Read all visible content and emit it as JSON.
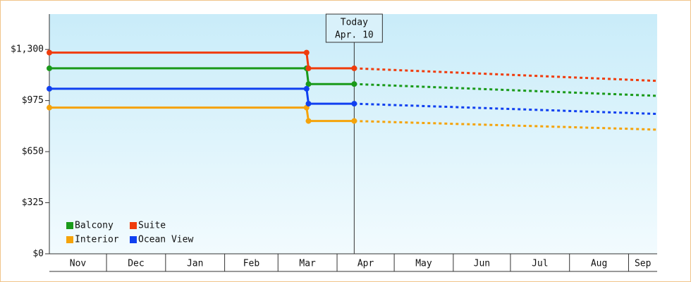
{
  "chart_data": {
    "type": "line",
    "xlim": [
      0,
      319
    ],
    "ylim": [
      0,
      1525
    ],
    "xticks": [
      {
        "value": 0,
        "label": "Nov"
      },
      {
        "value": 30,
        "label": "Dec"
      },
      {
        "value": 61,
        "label": "Jan"
      },
      {
        "value": 92,
        "label": "Feb"
      },
      {
        "value": 120,
        "label": "Mar"
      },
      {
        "value": 151,
        "label": "Apr"
      },
      {
        "value": 181,
        "label": "May"
      },
      {
        "value": 212,
        "label": "Jun"
      },
      {
        "value": 242,
        "label": "Jul"
      },
      {
        "value": 273,
        "label": "Aug"
      },
      {
        "value": 304,
        "label": "Sep"
      }
    ],
    "yticks": [
      {
        "value": 0,
        "label": "$0"
      },
      {
        "value": 325,
        "label": "$325"
      },
      {
        "value": 650,
        "label": "$650"
      },
      {
        "value": 975,
        "label": "$975"
      },
      {
        "value": 1300,
        "label": "$1,300"
      }
    ],
    "today": {
      "label": "Today",
      "date": "Apr. 10",
      "x": 160
    },
    "legend": "lower left",
    "series": [
      {
        "name": "Balcony",
        "color": "#1a9a1a",
        "x": [
          0,
          135,
          136,
          160,
          319
        ],
        "values": [
          1180,
          1180,
          1080,
          1080,
          1005
        ]
      },
      {
        "name": "Suite",
        "color": "#f03c0c",
        "x": [
          0,
          135,
          136,
          160,
          319
        ],
        "values": [
          1280,
          1280,
          1180,
          1180,
          1100
        ]
      },
      {
        "name": "Interior",
        "color": "#f5a30a",
        "x": [
          0,
          135,
          136,
          160,
          319
        ],
        "values": [
          930,
          930,
          845,
          845,
          790
        ]
      },
      {
        "name": "Ocean View",
        "color": "#1040f0",
        "x": [
          0,
          135,
          136,
          160,
          319
        ],
        "values": [
          1050,
          1050,
          955,
          955,
          890
        ]
      }
    ]
  }
}
